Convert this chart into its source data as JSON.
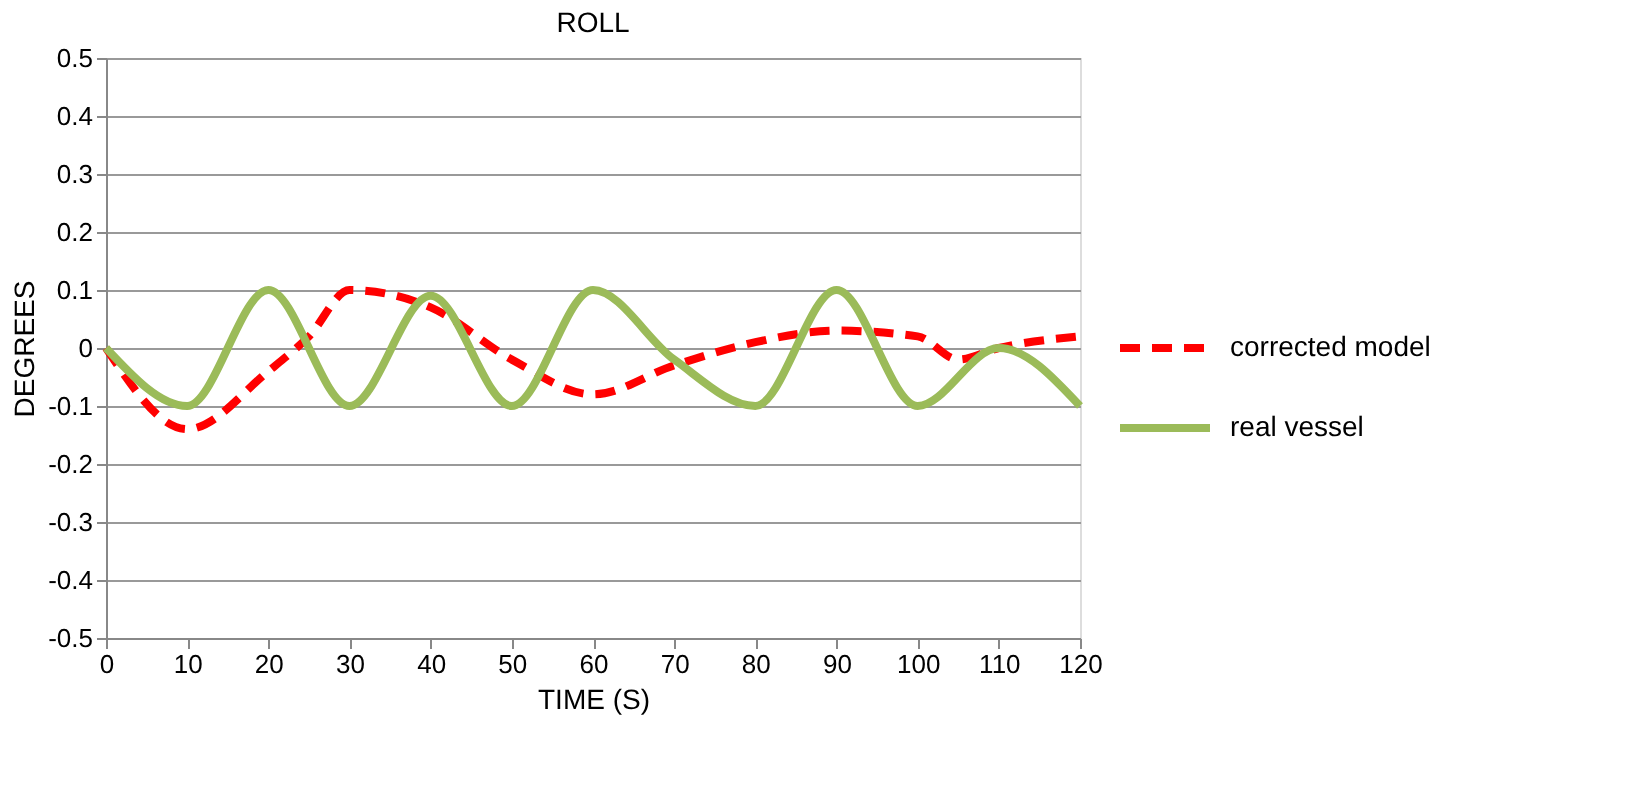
{
  "chart_data": {
    "type": "line",
    "title": "ROLL",
    "xlabel": "TIME (S)",
    "ylabel": "DEGREES",
    "xlim": [
      0,
      120
    ],
    "xticks": [
      0,
      10,
      20,
      30,
      40,
      50,
      60,
      70,
      80,
      90,
      100,
      110,
      120
    ],
    "ylim": [
      -0.5,
      0.5
    ],
    "yticks": [
      -0.5,
      -0.4,
      -0.3,
      -0.2,
      -0.1,
      0,
      0.1,
      0.2,
      0.3,
      0.4,
      0.5
    ],
    "grid": "y",
    "legend": "right",
    "marker": "none",
    "series": [
      {
        "name": "corrected model",
        "color": "#ff0000",
        "line_style": "dashed",
        "x": [
          0,
          10,
          20,
          25,
          30,
          40,
          50,
          60,
          70,
          80,
          90,
          100,
          105,
          110,
          120
        ],
        "values": [
          0,
          -0.14,
          -0.04,
          0.02,
          0.1,
          0.07,
          -0.02,
          -0.08,
          -0.03,
          0.01,
          0.03,
          0.02,
          -0.02,
          0,
          0.02
        ]
      },
      {
        "name": "real vessel",
        "color": "#9bbb59",
        "line_style": "solid",
        "x": [
          0,
          10,
          20,
          30,
          40,
          50,
          60,
          70,
          80,
          90,
          100,
          110,
          120
        ],
        "values": [
          0,
          -0.1,
          0.1,
          -0.1,
          0.09,
          -0.1,
          0.1,
          -0.02,
          -0.1,
          0.1,
          -0.1,
          0,
          -0.1
        ]
      }
    ]
  }
}
